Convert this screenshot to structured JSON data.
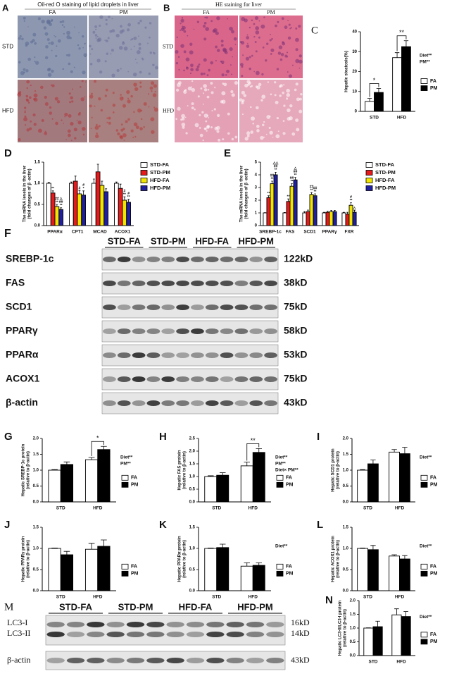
{
  "images": [
    {
      "panel": "A",
      "title": "Oil-red O staining of lipid droplets in liver",
      "columns": [
        "FA",
        "PM"
      ],
      "rows": [
        "STD",
        "HFD"
      ]
    },
    {
      "panel": "B",
      "title": "HE staining for liver",
      "columns": [
        "FA",
        "PM"
      ],
      "rows": [
        "STD",
        "HFD"
      ]
    }
  ],
  "blots": [
    {
      "panel": "F",
      "groups": [
        "STD-FA",
        "STD-PM",
        "HFD-FA",
        "HFD-PM"
      ],
      "rows": [
        {
          "name": "SREBP-1c",
          "size": "122kD"
        },
        {
          "name": "FAS",
          "size": "38kD"
        },
        {
          "name": "SCD1",
          "size": "75kD"
        },
        {
          "name": "PPARγ",
          "size": "58kD"
        },
        {
          "name": "PPARα",
          "size": "53kD"
        },
        {
          "name": "ACOX1",
          "size": "75kD"
        },
        {
          "name": "β-actin",
          "size": "43kD"
        }
      ]
    },
    {
      "panel": "M",
      "groups": [
        "STD-FA",
        "STD-PM",
        "HFD-FA",
        "HFD-PM"
      ],
      "rows": [
        {
          "name": "LC3-I",
          "size": "16kD"
        },
        {
          "name": "LC3-II",
          "size": "14kD"
        },
        {
          "name": "β-actin",
          "size": "43kD"
        }
      ]
    }
  ],
  "chart_data": [
    {
      "panel": "C",
      "type": "bar",
      "ylabel": [
        "Hepatic steatosis(%)"
      ],
      "categories": [
        "STD",
        "HFD"
      ],
      "series": [
        {
          "name": "FA",
          "color": "#ffffff",
          "values": [
            5,
            27
          ],
          "errors": [
            1.5,
            2.5
          ]
        },
        {
          "name": "PM",
          "color": "#000000",
          "values": [
            9.5,
            32.5
          ],
          "errors": [
            2,
            3
          ]
        }
      ],
      "ylim": [
        0,
        40
      ],
      "yticks": [
        0,
        10,
        20,
        30,
        40
      ],
      "brackets": [
        "*",
        "**"
      ],
      "stats": [
        "Diet**",
        "PM**"
      ]
    },
    {
      "panel": "D",
      "type": "bar",
      "ylabel": [
        "The mRNA levels in the liver",
        "(fold changes of β -actin)"
      ],
      "categories": [
        "PPARα",
        "CPT1",
        "MCAD",
        "ACOX1"
      ],
      "series": [
        {
          "name": "STD-FA",
          "color": "#ffffff",
          "values": [
            1,
            1,
            1,
            1
          ],
          "errors": [
            0.02,
            0.03,
            0.1,
            0.03
          ]
        },
        {
          "name": "STD-PM",
          "color": "#e41a1c",
          "values": [
            0.77,
            1.05,
            1.27,
            0.88
          ],
          "errors": [
            0.05,
            0.12,
            0.18,
            0.1
          ],
          "sig": [
            [
              "**"
            ],
            null,
            null,
            null
          ]
        },
        {
          "name": "HFD-FA",
          "color": "#f2e600",
          "values": [
            0.45,
            0.75,
            0.95,
            0.6
          ],
          "errors": [
            0.05,
            0.08,
            0.1,
            0.08
          ],
          "sig": [
            [
              "##",
              "**"
            ],
            [
              "#"
            ],
            null,
            [
              "#",
              "**"
            ]
          ]
        },
        {
          "name": "HFD-PM",
          "color": "#1f1fa0",
          "values": [
            0.38,
            0.72,
            0.8,
            0.55
          ],
          "errors": [
            0.04,
            0.1,
            0.07,
            0.07
          ],
          "sig": [
            [
              "△",
              "##",
              "**"
            ],
            [
              "#",
              "*"
            ],
            null,
            [
              "#",
              "**"
            ]
          ]
        }
      ],
      "ylim": [
        0,
        1.5
      ],
      "yticks": [
        {
          "value": 0,
          "label": "0.0"
        },
        0.5,
        {
          "value": 1,
          "label": "1.0"
        },
        1.5
      ]
    },
    {
      "panel": "E",
      "type": "bar",
      "ylabel": [
        "The mRNA levels in the liver",
        "(fold changes of β -actin)"
      ],
      "categories": [
        "SREBP-1c",
        "FAS",
        "SCD1",
        "PPARγ",
        "FXR"
      ],
      "series": [
        {
          "name": "STD-FA",
          "color": "#ffffff",
          "values": [
            1,
            1,
            1,
            1,
            1
          ],
          "errors": [
            0.02,
            0.03,
            0.1,
            0.05,
            0.05
          ]
        },
        {
          "name": "STD-PM",
          "color": "#e41a1c",
          "values": [
            2.2,
            1.9,
            1.1,
            1.05,
            0.9
          ],
          "errors": [
            0.15,
            0.2,
            0.12,
            0.08,
            0.15
          ],
          "sig": [
            [
              "**"
            ],
            [
              "**"
            ],
            null,
            null,
            null
          ]
        },
        {
          "name": "HFD-FA",
          "color": "#f2e600",
          "values": [
            3.3,
            3.1,
            2.45,
            1.1,
            1.6
          ],
          "errors": [
            0.2,
            0.2,
            0.15,
            0.1,
            0.2
          ],
          "sig": [
            [
              "##",
              "**"
            ],
            [
              "##",
              "**"
            ],
            [
              "##",
              "**"
            ],
            null,
            [
              "#",
              "**"
            ]
          ]
        },
        {
          "name": "HFD-PM",
          "color": "#1f1fa0",
          "values": [
            4.0,
            3.6,
            2.35,
            1.1,
            1.05
          ],
          "errors": [
            0.2,
            0.2,
            0.15,
            0.1,
            0.15
          ],
          "sig": [
            [
              "△△",
              "##",
              "**"
            ],
            [
              "△",
              "##",
              "**"
            ],
            [
              "##",
              "**"
            ],
            null,
            [
              "△"
            ]
          ]
        }
      ],
      "ylim": [
        0,
        5
      ],
      "yticks": [
        0,
        1,
        2,
        3,
        4,
        5
      ]
    },
    {
      "panel": "G",
      "type": "bar",
      "ylabel": [
        "Hepatic SREBP-1c protein",
        "(relative to β-actin)"
      ],
      "categories": [
        "STD",
        "HFD"
      ],
      "series": [
        {
          "name": "FA",
          "color": "#ffffff",
          "values": [
            1,
            1.33
          ],
          "errors": [
            0.02,
            0.07
          ]
        },
        {
          "name": "PM",
          "color": "#000000",
          "values": [
            1.18,
            1.65
          ],
          "errors": [
            0.08,
            0.1
          ]
        }
      ],
      "ylim": [
        0,
        2
      ],
      "yticks": [
        {
          "value": 0,
          "label": "0.0"
        },
        0.5,
        {
          "value": 1,
          "label": "1.0"
        },
        1.5,
        {
          "value": 2,
          "label": "2.0"
        }
      ],
      "brackets": [
        null,
        "*"
      ],
      "stats": [
        "Diet**",
        "PM**"
      ]
    },
    {
      "panel": "H",
      "type": "bar",
      "ylabel": [
        "Hepatic FAS protein",
        "(relative to β-actin)"
      ],
      "categories": [
        "STD",
        "HFD"
      ],
      "series": [
        {
          "name": "FA",
          "color": "#ffffff",
          "values": [
            1,
            1.42
          ],
          "errors": [
            0.03,
            0.15
          ]
        },
        {
          "name": "PM",
          "color": "#000000",
          "values": [
            1.05,
            1.95
          ],
          "errors": [
            0.1,
            0.15
          ]
        }
      ],
      "ylim": [
        0,
        2.5
      ],
      "yticks": [
        {
          "value": 0,
          "label": "0.0"
        },
        0.5,
        {
          "value": 1,
          "label": "1.0"
        },
        1.5,
        {
          "value": 2,
          "label": "2.0"
        },
        2.5
      ],
      "brackets": [
        null,
        "**"
      ],
      "stats": [
        "Diet**",
        "PM**",
        "Diet× PM**"
      ]
    },
    {
      "panel": "I",
      "type": "bar",
      "ylabel": [
        "Hepatic SCD1 protein",
        "(relative to β-actin)"
      ],
      "categories": [
        "STD",
        "HFD"
      ],
      "series": [
        {
          "name": "FA",
          "color": "#ffffff",
          "values": [
            1,
            1.57
          ],
          "errors": [
            0.02,
            0.08
          ]
        },
        {
          "name": "PM",
          "color": "#000000",
          "values": [
            1.2,
            1.52
          ],
          "errors": [
            0.12,
            0.2
          ]
        }
      ],
      "ylim": [
        0,
        2
      ],
      "yticks": [
        {
          "value": 0,
          "label": "0.0"
        },
        0.5,
        {
          "value": 1,
          "label": "1.0"
        },
        1.5,
        {
          "value": 2,
          "label": "2.0"
        }
      ],
      "stats": [
        "Diet**"
      ]
    },
    {
      "panel": "J",
      "type": "bar",
      "ylabel": [
        "Hepatic PPARγ protein",
        "(relative to β-actin)"
      ],
      "categories": [
        "STD",
        "HFD"
      ],
      "series": [
        {
          "name": "FA",
          "color": "#ffffff",
          "values": [
            1,
            0.98
          ],
          "errors": [
            0.01,
            0.14
          ]
        },
        {
          "name": "PM",
          "color": "#000000",
          "values": [
            0.85,
            1.05
          ],
          "errors": [
            0.08,
            0.15
          ]
        }
      ],
      "ylim": [
        0,
        1.5
      ],
      "yticks": [
        {
          "value": 0,
          "label": "0.0"
        },
        0.5,
        {
          "value": 1,
          "label": "1.0"
        },
        1.5
      ]
    },
    {
      "panel": "K",
      "type": "bar",
      "ylabel": [
        "Hepatic PPARα protein",
        "(relative to β-actin)"
      ],
      "categories": [
        "STD",
        "HFD"
      ],
      "series": [
        {
          "name": "FA",
          "color": "#ffffff",
          "values": [
            1,
            0.58
          ],
          "errors": [
            0.01,
            0.08
          ]
        },
        {
          "name": "PM",
          "color": "#000000",
          "values": [
            1.02,
            0.6
          ],
          "errors": [
            0.08,
            0.06
          ]
        }
      ],
      "ylim": [
        0,
        1.5
      ],
      "yticks": [
        {
          "value": 0,
          "label": "0.0"
        },
        0.5,
        {
          "value": 1,
          "label": "1.0"
        },
        1.5
      ],
      "stats": [
        "Diet**"
      ]
    },
    {
      "panel": "L",
      "type": "bar",
      "ylabel": [
        "Hepatic ACOX1 protein",
        "(relative to β-actin)"
      ],
      "categories": [
        "STD",
        "HFD"
      ],
      "series": [
        {
          "name": "FA",
          "color": "#ffffff",
          "values": [
            1,
            0.82
          ],
          "errors": [
            0.01,
            0.03
          ]
        },
        {
          "name": "PM",
          "color": "#000000",
          "values": [
            0.97,
            0.75
          ],
          "errors": [
            0.1,
            0.08
          ]
        }
      ],
      "ylim": [
        0,
        1.5
      ],
      "yticks": [
        {
          "value": 0,
          "label": "0.0"
        },
        0.5,
        {
          "value": 1,
          "label": "1.0"
        },
        1.5
      ],
      "stats": [
        "Diet**"
      ]
    },
    {
      "panel": "N",
      "type": "bar",
      "ylabel": [
        "Hepatic LC3-II/LC3-I protein",
        "(relative to β-actin)"
      ],
      "categories": [
        "STD",
        "HFD"
      ],
      "series": [
        {
          "name": "FA",
          "color": "#ffffff",
          "values": [
            1,
            1.48
          ],
          "errors": [
            0.01,
            0.22
          ]
        },
        {
          "name": "PM",
          "color": "#000000",
          "values": [
            1.05,
            1.42
          ],
          "errors": [
            0.2,
            0.18
          ]
        }
      ],
      "ylim": [
        0,
        2
      ],
      "yticks": [
        {
          "value": 0,
          "label": "0.0"
        },
        0.5,
        {
          "value": 1,
          "label": "1.0"
        },
        1.5,
        {
          "value": 2,
          "label": "2.0"
        }
      ],
      "stats": [
        "Diet**"
      ]
    }
  ]
}
